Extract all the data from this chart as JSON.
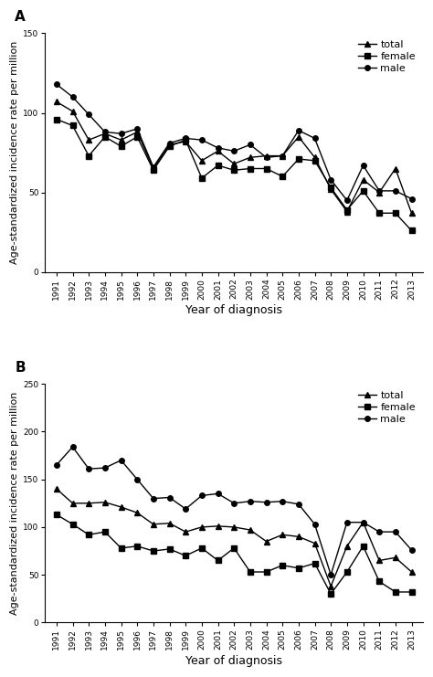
{
  "years": [
    1991,
    1992,
    1993,
    1994,
    1995,
    1996,
    1997,
    1998,
    1999,
    2000,
    2001,
    2002,
    2003,
    2004,
    2005,
    2006,
    2007,
    2008,
    2009,
    2010,
    2011,
    2012,
    2013
  ],
  "panel_A": {
    "title": "A",
    "ylabel": "Age-standardized incidence rate per million",
    "xlabel": "Year of diagnosis",
    "ylim": [
      0,
      150
    ],
    "yticks": [
      0,
      50,
      100,
      150
    ],
    "total": [
      107,
      101,
      83,
      87,
      83,
      88,
      65,
      80,
      82,
      70,
      76,
      68,
      72,
      73,
      73,
      85,
      72,
      52,
      38,
      58,
      50,
      65,
      37
    ],
    "female": [
      96,
      92,
      73,
      85,
      79,
      85,
      64,
      79,
      83,
      59,
      67,
      64,
      65,
      65,
      60,
      71,
      70,
      53,
      39,
      51,
      37,
      37,
      26
    ],
    "male": [
      118,
      110,
      99,
      88,
      87,
      90,
      66,
      81,
      84,
      83,
      78,
      76,
      80,
      72,
      73,
      89,
      84,
      58,
      45,
      67,
      51,
      51,
      46
    ]
  },
  "panel_B": {
    "title": "B",
    "ylabel": "Age-standardized incidence rate per million",
    "xlabel": "Year of diagnosis",
    "ylim": [
      0,
      250
    ],
    "yticks": [
      0,
      50,
      100,
      150,
      200,
      250
    ],
    "total": [
      140,
      125,
      125,
      126,
      121,
      115,
      103,
      104,
      95,
      100,
      101,
      100,
      97,
      85,
      92,
      90,
      83,
      38,
      80,
      105,
      65,
      68,
      53
    ],
    "female": [
      113,
      103,
      92,
      95,
      78,
      80,
      75,
      77,
      70,
      78,
      65,
      78,
      53,
      53,
      60,
      57,
      62,
      30,
      53,
      80,
      43,
      32,
      32
    ],
    "male": [
      165,
      184,
      161,
      162,
      170,
      150,
      130,
      131,
      119,
      133,
      135,
      125,
      127,
      126,
      127,
      124,
      103,
      50,
      105,
      105,
      95,
      95,
      76
    ]
  },
  "line_color": "#000000",
  "marker_total": "^",
  "marker_female": "s",
  "marker_male": "o",
  "markersize": 4,
  "linewidth": 1.0,
  "tick_fontsize": 6.5,
  "label_fontsize": 8,
  "legend_fontsize": 8
}
